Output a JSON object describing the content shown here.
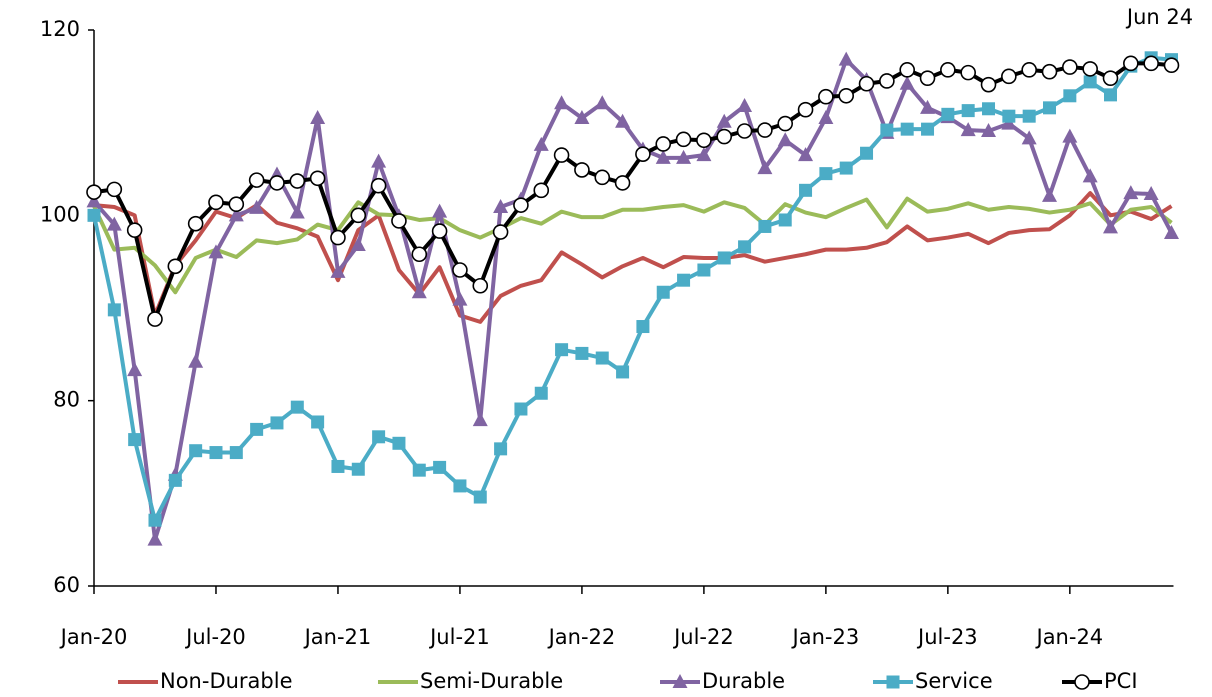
{
  "chart_data": {
    "type": "line",
    "annotation": "Jun 24",
    "categories": [
      "Jan-20",
      null,
      null,
      null,
      null,
      null,
      "Jul-20",
      null,
      null,
      null,
      null,
      null,
      "Jan-21",
      null,
      null,
      null,
      null,
      null,
      "Jul-21",
      null,
      null,
      null,
      null,
      null,
      "Jan-22",
      null,
      null,
      null,
      null,
      null,
      "Jul-22",
      null,
      null,
      null,
      null,
      null,
      "Jan-23",
      null,
      null,
      null,
      null,
      null,
      "Jul-23",
      null,
      null,
      null,
      null,
      null,
      "Jan-24",
      null,
      null,
      null,
      null,
      null
    ],
    "ylim": [
      60,
      120
    ],
    "yticks": [
      60,
      80,
      100,
      120
    ],
    "series": [
      {
        "name": "Non-Durable",
        "color": "#c0504d",
        "marker": "none",
        "values": [
          101.1,
          100.9,
          100.0,
          89.2,
          94.6,
          97.3,
          100.4,
          99.7,
          101.1,
          99.2,
          98.6,
          97.7,
          93.0,
          98.4,
          100.0,
          94.1,
          91.5,
          94.4,
          89.2,
          88.5,
          91.3,
          92.4,
          93.0,
          96.0,
          94.7,
          93.3,
          94.5,
          95.4,
          94.4,
          95.5,
          95.4,
          95.4,
          95.7,
          95.0,
          95.4,
          95.8,
          96.3,
          96.3,
          96.5,
          97.1,
          98.8,
          97.3,
          97.6,
          98.0,
          97.0,
          98.1,
          98.4,
          98.5,
          100.0,
          102.4,
          100.0,
          100.4,
          99.6,
          101.0
        ]
      },
      {
        "name": "Semi-Durable",
        "color": "#9bbb59",
        "marker": "none",
        "values": [
          101.0,
          96.3,
          96.5,
          94.6,
          91.7,
          95.4,
          96.3,
          95.5,
          97.3,
          97.0,
          97.4,
          99.0,
          98.4,
          101.4,
          100.1,
          100.0,
          99.5,
          99.7,
          98.4,
          97.6,
          98.6,
          99.7,
          99.1,
          100.4,
          99.8,
          99.8,
          100.6,
          100.6,
          100.9,
          101.1,
          100.4,
          101.4,
          100.8,
          99.0,
          101.2,
          100.3,
          99.8,
          100.8,
          101.7,
          98.7,
          101.8,
          100.4,
          100.7,
          101.3,
          100.6,
          100.9,
          100.7,
          100.3,
          100.6,
          101.3,
          99.0,
          100.6,
          100.9,
          99.2
        ]
      },
      {
        "name": "Durable",
        "color": "#8064a2",
        "marker": "triangle",
        "values": [
          101.5,
          99.0,
          83.3,
          65.0,
          72.0,
          84.2,
          96.0,
          100.0,
          100.8,
          104.4,
          100.3,
          110.5,
          93.9,
          96.8,
          105.8,
          99.9,
          91.7,
          100.4,
          90.9,
          77.9,
          100.9,
          101.7,
          107.6,
          112.1,
          110.5,
          112.1,
          110.1,
          107.1,
          106.2,
          106.2,
          106.5,
          110.1,
          111.8,
          105.1,
          108.1,
          106.5,
          110.5,
          116.8,
          114.6,
          108.9,
          114.2,
          111.6,
          110.6,
          109.2,
          109.1,
          109.9,
          108.3,
          102.1,
          108.5,
          104.2,
          98.7,
          102.4,
          102.3,
          98.1
        ]
      },
      {
        "name": "Service",
        "color": "#4bacc6",
        "marker": "square",
        "values": [
          100.0,
          89.8,
          75.8,
          67.1,
          71.4,
          74.6,
          74.4,
          74.4,
          76.9,
          77.6,
          79.3,
          77.7,
          72.9,
          72.6,
          76.1,
          75.4,
          72.5,
          72.8,
          70.8,
          69.6,
          74.8,
          79.1,
          80.8,
          85.5,
          85.1,
          84.6,
          83.1,
          88.0,
          91.7,
          93.0,
          94.1,
          95.4,
          96.6,
          98.8,
          99.5,
          102.7,
          104.5,
          105.1,
          106.7,
          109.2,
          109.3,
          109.3,
          110.9,
          111.3,
          111.5,
          110.7,
          110.7,
          111.6,
          112.9,
          114.4,
          113.0,
          116.1,
          117.0,
          116.8
        ]
      },
      {
        "name": "PCI",
        "color": "#000000",
        "marker": "circle",
        "values": [
          102.5,
          102.8,
          98.4,
          88.8,
          94.5,
          99.1,
          101.4,
          101.2,
          103.8,
          103.5,
          103.7,
          104.0,
          97.6,
          100.0,
          103.2,
          99.4,
          95.8,
          98.3,
          94.1,
          92.4,
          98.2,
          101.1,
          102.7,
          106.5,
          104.9,
          104.1,
          103.5,
          106.6,
          107.7,
          108.2,
          108.1,
          108.5,
          109.1,
          109.2,
          109.9,
          111.4,
          112.8,
          112.9,
          114.2,
          114.5,
          115.7,
          114.8,
          115.7,
          115.4,
          114.1,
          115.0,
          115.7,
          115.5,
          116.0,
          115.8,
          114.8,
          116.4,
          116.4,
          116.2
        ]
      }
    ]
  }
}
